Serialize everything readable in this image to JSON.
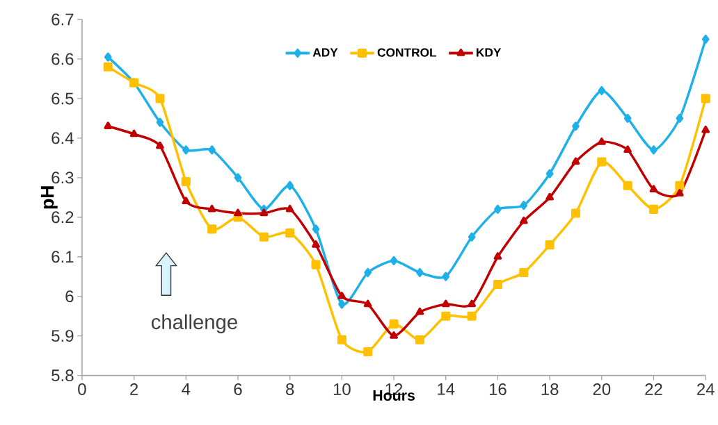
{
  "chart_data": {
    "type": "line",
    "xlabel": "Hours",
    "ylabel": "pH",
    "x": [
      1,
      2,
      3,
      4,
      5,
      6,
      7,
      8,
      9,
      10,
      11,
      12,
      13,
      14,
      15,
      16,
      17,
      18,
      19,
      20,
      21,
      22,
      23,
      24
    ],
    "series": [
      {
        "name": "ADY",
        "color": "#1eb0e8",
        "marker": "diamond",
        "values": [
          6.605,
          6.54,
          6.44,
          6.37,
          6.37,
          6.3,
          6.22,
          6.28,
          6.17,
          5.98,
          6.06,
          6.09,
          6.06,
          6.05,
          6.15,
          6.22,
          6.23,
          6.31,
          6.43,
          6.52,
          6.45,
          6.37,
          6.45,
          6.65
        ]
      },
      {
        "name": "CONTROL",
        "color": "#ffc000",
        "marker": "square",
        "values": [
          6.58,
          6.54,
          6.5,
          6.29,
          6.17,
          6.2,
          6.15,
          6.16,
          6.08,
          5.89,
          5.86,
          5.93,
          5.89,
          5.95,
          5.95,
          6.03,
          6.06,
          6.13,
          6.21,
          6.34,
          6.28,
          6.22,
          6.28,
          6.5
        ]
      },
      {
        "name": "KDY",
        "color": "#c00000",
        "marker": "triangle",
        "values": [
          6.43,
          6.41,
          6.38,
          6.24,
          6.22,
          6.21,
          6.21,
          6.22,
          6.13,
          6.0,
          5.98,
          5.9,
          5.96,
          5.98,
          5.98,
          6.1,
          6.19,
          6.25,
          6.34,
          6.39,
          6.37,
          6.27,
          6.26,
          6.42
        ]
      }
    ],
    "xlim": [
      0,
      24
    ],
    "xticks": [
      0,
      2,
      4,
      6,
      8,
      10,
      12,
      14,
      16,
      18,
      20,
      22,
      24
    ],
    "ylim": [
      5.8,
      6.7
    ],
    "yticks": [
      5.8,
      5.9,
      6,
      6.1,
      6.2,
      6.3,
      6.4,
      6.5,
      6.6,
      6.7
    ],
    "annotations": [
      "challenge"
    ],
    "grid": false,
    "legend": "top",
    "line_style": "solid"
  }
}
